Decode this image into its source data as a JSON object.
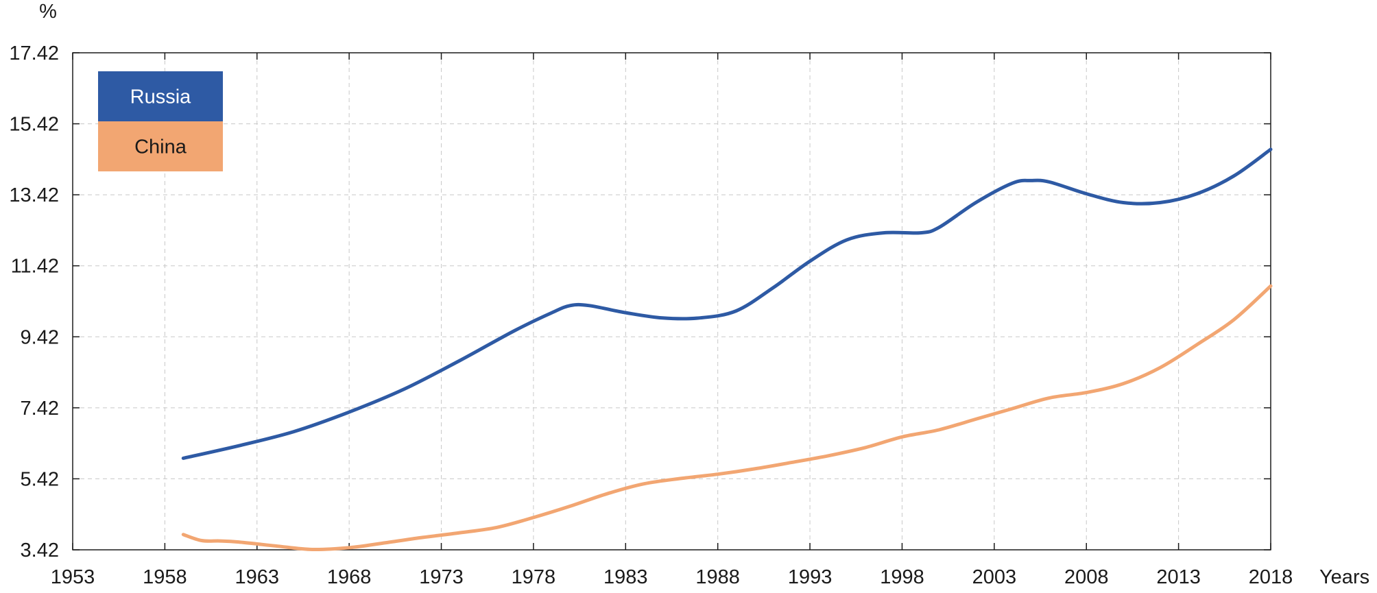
{
  "chart_data": {
    "type": "line",
    "ylabel": "%",
    "xlabel": "Years",
    "xlim": [
      1953,
      2018
    ],
    "ylim": [
      3.42,
      17.42
    ],
    "x_ticks": [
      "1953",
      "1958",
      "1963",
      "1968",
      "1973",
      "1978",
      "1983",
      "1988",
      "1993",
      "1998",
      "2003",
      "2008",
      "2013",
      "2018"
    ],
    "y_ticks": [
      "3.42",
      "5.42",
      "7.42",
      "9.42",
      "11.42",
      "13.42",
      "15.42",
      "17.42"
    ],
    "grid": true,
    "legend_position": "top-left",
    "series": [
      {
        "name": "Russia",
        "color": "#2e5aa4",
        "points": [
          [
            1959,
            6.0
          ],
          [
            1962,
            6.35
          ],
          [
            1965,
            6.75
          ],
          [
            1968,
            7.3
          ],
          [
            1971,
            7.95
          ],
          [
            1974,
            8.75
          ],
          [
            1977,
            9.6
          ],
          [
            1979,
            10.1
          ],
          [
            1980,
            10.3
          ],
          [
            1981,
            10.3
          ],
          [
            1983,
            10.1
          ],
          [
            1985,
            9.95
          ],
          [
            1987,
            9.95
          ],
          [
            1989,
            10.15
          ],
          [
            1991,
            10.8
          ],
          [
            1993,
            11.55
          ],
          [
            1995,
            12.15
          ],
          [
            1997,
            12.35
          ],
          [
            1999,
            12.35
          ],
          [
            2000,
            12.5
          ],
          [
            2002,
            13.2
          ],
          [
            2004,
            13.75
          ],
          [
            2005,
            13.82
          ],
          [
            2006,
            13.78
          ],
          [
            2008,
            13.45
          ],
          [
            2010,
            13.2
          ],
          [
            2012,
            13.2
          ],
          [
            2014,
            13.45
          ],
          [
            2016,
            13.95
          ],
          [
            2018,
            14.7
          ]
        ]
      },
      {
        "name": "China",
        "color": "#f2a672",
        "points": [
          [
            1959,
            3.85
          ],
          [
            1960,
            3.68
          ],
          [
            1961,
            3.67
          ],
          [
            1962,
            3.64
          ],
          [
            1964,
            3.53
          ],
          [
            1966,
            3.43
          ],
          [
            1968,
            3.48
          ],
          [
            1970,
            3.62
          ],
          [
            1972,
            3.77
          ],
          [
            1974,
            3.9
          ],
          [
            1976,
            4.05
          ],
          [
            1978,
            4.33
          ],
          [
            1980,
            4.65
          ],
          [
            1982,
            5.0
          ],
          [
            1984,
            5.28
          ],
          [
            1986,
            5.43
          ],
          [
            1988,
            5.55
          ],
          [
            1990,
            5.7
          ],
          [
            1992,
            5.88
          ],
          [
            1994,
            6.07
          ],
          [
            1996,
            6.3
          ],
          [
            1998,
            6.6
          ],
          [
            2000,
            6.8
          ],
          [
            2002,
            7.1
          ],
          [
            2004,
            7.4
          ],
          [
            2006,
            7.7
          ],
          [
            2008,
            7.85
          ],
          [
            2010,
            8.1
          ],
          [
            2012,
            8.55
          ],
          [
            2014,
            9.2
          ],
          [
            2016,
            9.9
          ],
          [
            2018,
            10.85
          ]
        ]
      }
    ]
  }
}
